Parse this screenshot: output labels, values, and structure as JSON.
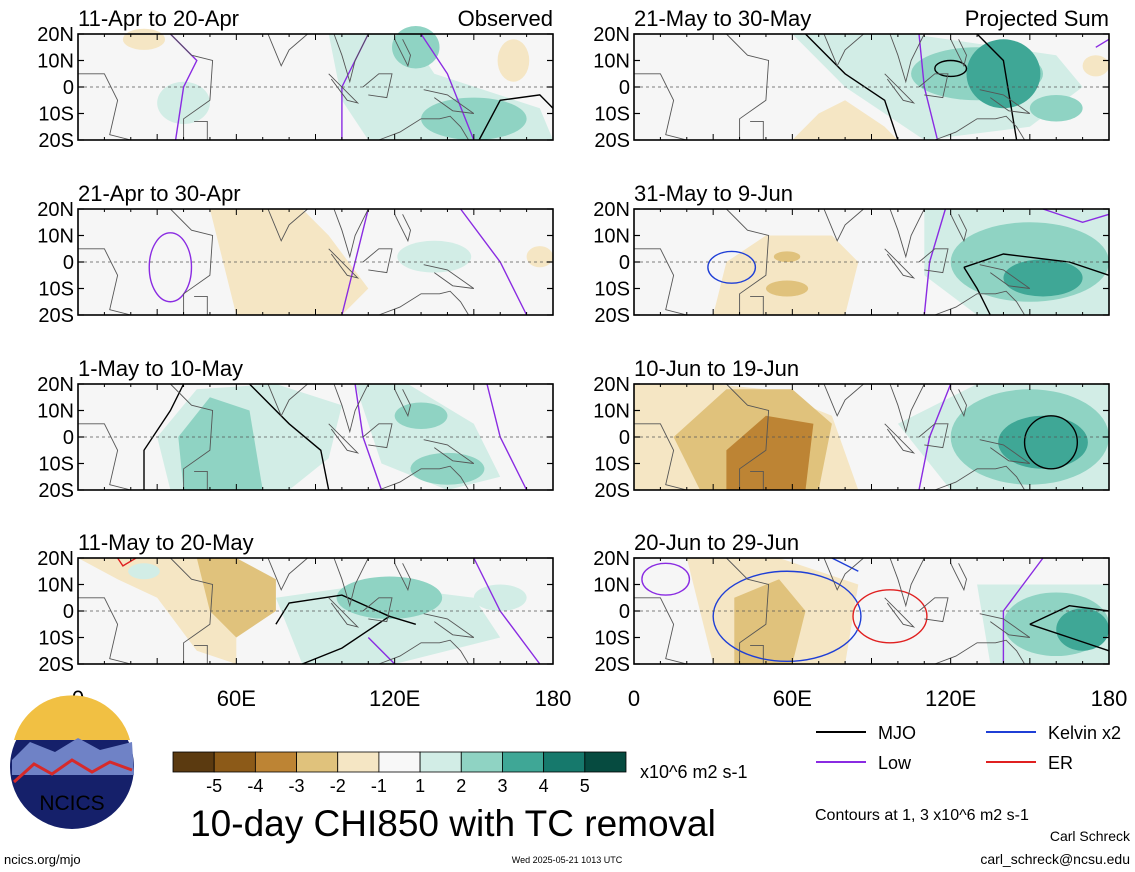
{
  "chart_data": {
    "type": "heatmap",
    "title": "10-day CHI850 with TC removal",
    "variable": "CHI850",
    "units": "x10^6 m2 s-1",
    "contour_note": "Contours at 1, 3 x10^6 m2 s-1",
    "x_ticks": [
      "0",
      "60E",
      "120E",
      "180"
    ],
    "y_ticks": [
      "20N",
      "10N",
      "0",
      "10S",
      "20S"
    ],
    "xlim": [
      0,
      180
    ],
    "ylim": [
      -20,
      20
    ],
    "colorbar": {
      "labels": [
        "-5",
        "-4",
        "-3",
        "-2",
        "-1",
        "1",
        "2",
        "3",
        "4",
        "5"
      ],
      "colors": [
        "#5b3a10",
        "#8c5a18",
        "#bd8434",
        "#e0c27c",
        "#f5e6c4",
        "#f8f8f8",
        "#d2ede6",
        "#8fd3c3",
        "#3fa796",
        "#16796c",
        "#064b40"
      ]
    },
    "legend": [
      {
        "label": "MJO",
        "color": "#000000"
      },
      {
        "label": "Kelvin x2",
        "color": "#1f3fd6"
      },
      {
        "label": "Low",
        "color": "#8a2be2"
      },
      {
        "label": "ER",
        "color": "#e02020"
      }
    ],
    "panels": [
      {
        "period": "11-Apr to 20-Apr",
        "tag": "Observed",
        "column": "left"
      },
      {
        "period": "21-Apr to 30-Apr",
        "tag": "",
        "column": "left"
      },
      {
        "period": "1-May to 10-May",
        "tag": "",
        "column": "left"
      },
      {
        "period": "11-May to 20-May",
        "tag": "",
        "column": "left"
      },
      {
        "period": "21-May to 30-May",
        "tag": "Projected Sum",
        "column": "right"
      },
      {
        "period": "31-May to 9-Jun",
        "tag": "",
        "column": "right"
      },
      {
        "period": "10-Jun to 19-Jun",
        "tag": "",
        "column": "right"
      },
      {
        "period": "20-Jun to 29-Jun",
        "tag": "",
        "column": "right"
      }
    ]
  },
  "logo": {
    "text": "NCICS"
  },
  "footer": {
    "site": "ncics.org/mjo",
    "timestamp": "Wed 2025-05-21 1013 UTC",
    "author": "Carl Schreck",
    "email": "carl_schreck@ncsu.edu"
  }
}
